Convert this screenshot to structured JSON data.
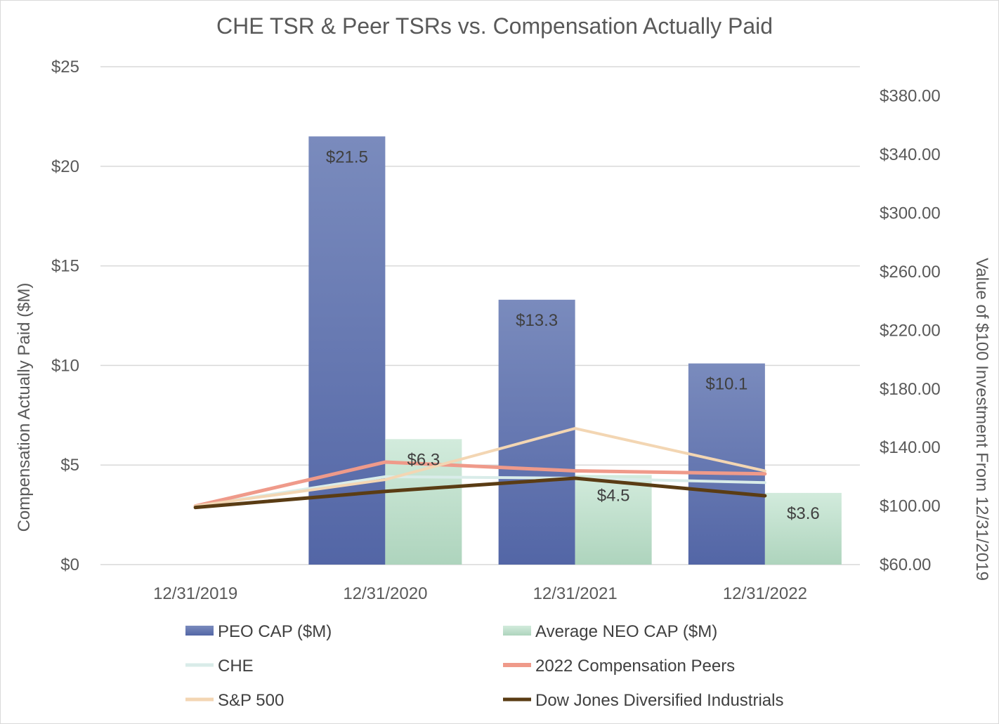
{
  "chart_data": {
    "type": "bar",
    "title": "CHE TSR & Peer TSRs vs. Compensation Actually Paid",
    "categories": [
      "12/31/2019",
      "12/31/2020",
      "12/31/2021",
      "12/31/2022"
    ],
    "ylabel": "Compensation Actually Paid ($M)",
    "y2label": "Value of $100 Investment From 12/31/2019",
    "ylim": [
      0,
      25
    ],
    "y2lim": [
      60,
      400
    ],
    "y_ticks": [
      "$0",
      "$5",
      "$10",
      "$15",
      "$20",
      "$25"
    ],
    "y_tick_values": [
      0,
      5,
      10,
      15,
      20,
      25
    ],
    "y2_ticks": [
      "$60.00",
      "$100.00",
      "$140.00",
      "$180.00",
      "$220.00",
      "$260.00",
      "$300.00",
      "$340.00",
      "$380.00"
    ],
    "y2_tick_values": [
      60,
      100,
      140,
      180,
      220,
      260,
      300,
      340,
      380
    ],
    "bar_series": [
      {
        "name": "PEO CAP ($M)",
        "values": [
          null,
          21.5,
          13.3,
          10.1
        ],
        "labels": [
          "",
          "$21.5",
          "$13.3",
          "$10.1"
        ],
        "color": "#6478b4"
      },
      {
        "name": "Average NEO CAP ($M)",
        "values": [
          null,
          6.3,
          4.5,
          3.6
        ],
        "labels": [
          "",
          "$6.3",
          "$4.5",
          "$3.6"
        ],
        "color": "#c4e2d0"
      }
    ],
    "line_series": [
      {
        "name": "CHE",
        "values": [
          100,
          120,
          119,
          116
        ],
        "color": "#d9ece9"
      },
      {
        "name": "2022 Compensation Peers",
        "values": [
          100,
          130,
          124,
          122
        ],
        "color": "#ef9a8a"
      },
      {
        "name": "S&P 500",
        "values": [
          100,
          118,
          153,
          124
        ],
        "color": "#f3d6b3"
      },
      {
        "name": "Dow Jones Diversified Industrials",
        "values": [
          99,
          110,
          119,
          107
        ],
        "color": "#5a3c14"
      }
    ],
    "legend_position": "bottom",
    "grid": true
  }
}
